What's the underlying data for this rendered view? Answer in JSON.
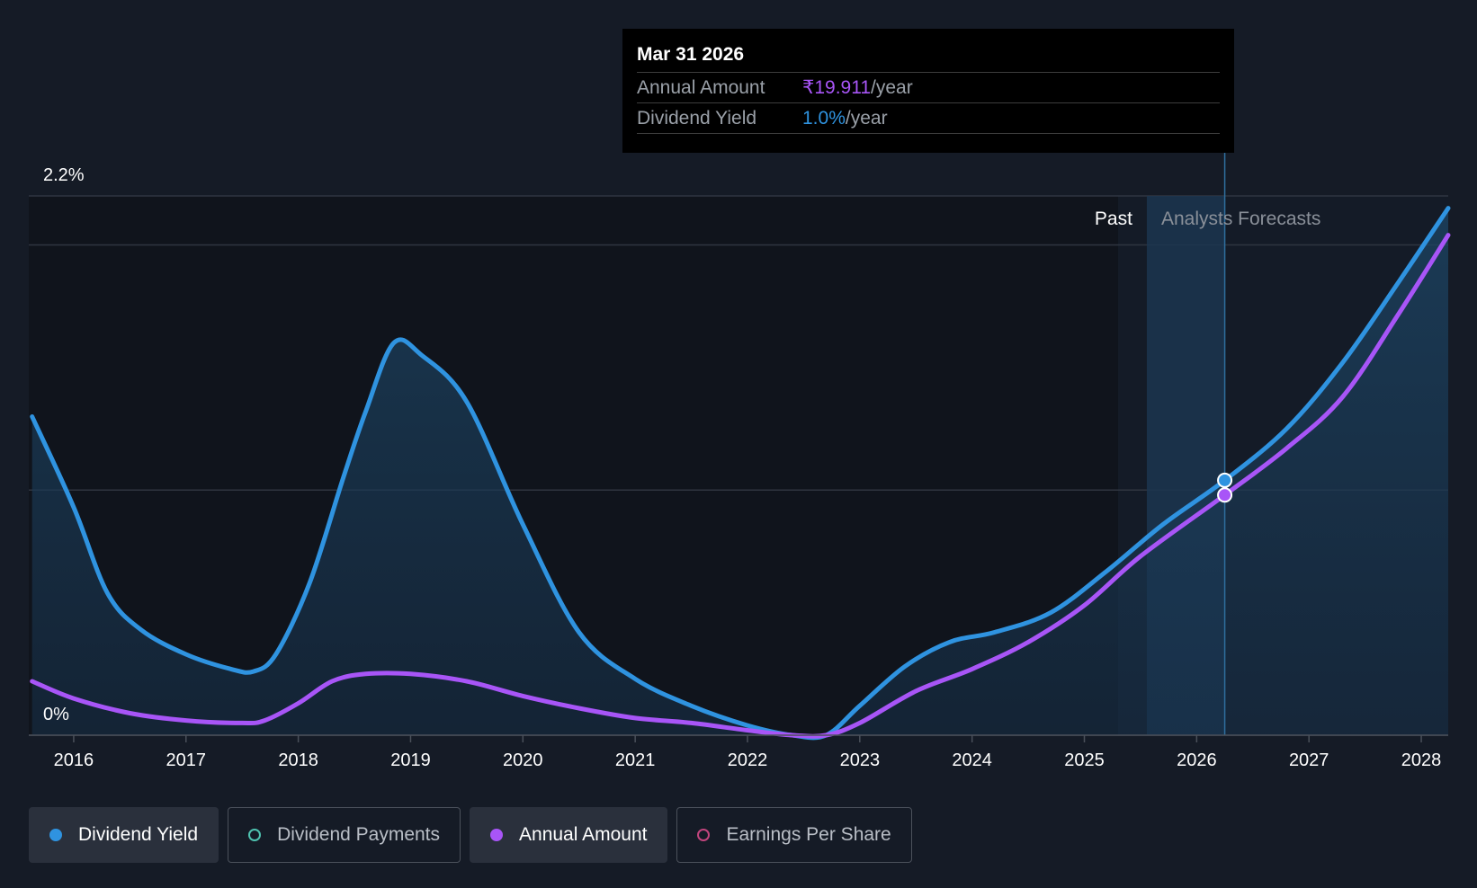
{
  "tooltip": {
    "date": "Mar 31 2026",
    "rows": [
      {
        "label": "Annual Amount",
        "value": "₹19.911",
        "unit": "/year"
      },
      {
        "label": "Dividend Yield",
        "value": "1.0%",
        "unit": "/year"
      }
    ]
  },
  "legend": [
    {
      "label": "Dividend Yield",
      "color": "#2f93e0",
      "active": true,
      "filled": true
    },
    {
      "label": "Dividend Payments",
      "color": "#4fc3b0",
      "active": false,
      "filled": false
    },
    {
      "label": "Annual Amount",
      "color": "#a855f7",
      "active": true,
      "filled": true
    },
    {
      "label": "Earnings Per Share",
      "color": "#c2457d",
      "active": false,
      "filled": false
    }
  ],
  "chart_data": {
    "type": "line",
    "y_labels": [
      "2.2%",
      "0%"
    ],
    "ylim": [
      0,
      2.2
    ],
    "x_ticks": [
      "2016",
      "2017",
      "2018",
      "2019",
      "2020",
      "2021",
      "2022",
      "2023",
      "2024",
      "2025",
      "2026",
      "2027",
      "2028"
    ],
    "xlim": [
      2015.6,
      2028.24
    ],
    "regions": {
      "past_label": "Past",
      "forecast_label": "Analysts Forecasts",
      "forecast_start": 2025.3
    },
    "highlight_x": 2026.25,
    "gridlines": [
      0,
      1.0,
      2.0,
      2.2
    ],
    "series": [
      {
        "name": "Dividend Yield",
        "color": "#2f93e0",
        "points": [
          [
            2015.63,
            1.3
          ],
          [
            2016.0,
            0.93
          ],
          [
            2016.3,
            0.58
          ],
          [
            2016.6,
            0.43
          ],
          [
            2017.0,
            0.33
          ],
          [
            2017.4,
            0.27
          ],
          [
            2017.6,
            0.26
          ],
          [
            2017.8,
            0.33
          ],
          [
            2018.1,
            0.62
          ],
          [
            2018.4,
            1.05
          ],
          [
            2018.6,
            1.32
          ],
          [
            2018.85,
            1.6
          ],
          [
            2019.1,
            1.55
          ],
          [
            2019.5,
            1.36
          ],
          [
            2020.0,
            0.86
          ],
          [
            2020.5,
            0.42
          ],
          [
            2021.0,
            0.23
          ],
          [
            2021.5,
            0.12
          ],
          [
            2022.0,
            0.04
          ],
          [
            2022.4,
            0.0
          ],
          [
            2022.7,
            0.0
          ],
          [
            2023.0,
            0.12
          ],
          [
            2023.4,
            0.28
          ],
          [
            2023.8,
            0.38
          ],
          [
            2024.2,
            0.42
          ],
          [
            2024.7,
            0.5
          ],
          [
            2025.2,
            0.67
          ],
          [
            2025.7,
            0.86
          ],
          [
            2026.25,
            1.04
          ],
          [
            2026.8,
            1.25
          ],
          [
            2027.3,
            1.52
          ],
          [
            2027.8,
            1.85
          ],
          [
            2028.24,
            2.15
          ]
        ]
      },
      {
        "name": "Annual Amount",
        "color": "#a855f7",
        "points": [
          [
            2015.63,
            0.22
          ],
          [
            2016.0,
            0.15
          ],
          [
            2016.5,
            0.09
          ],
          [
            2017.0,
            0.06
          ],
          [
            2017.5,
            0.05
          ],
          [
            2017.7,
            0.06
          ],
          [
            2018.0,
            0.13
          ],
          [
            2018.3,
            0.22
          ],
          [
            2018.6,
            0.25
          ],
          [
            2019.0,
            0.25
          ],
          [
            2019.5,
            0.22
          ],
          [
            2020.0,
            0.16
          ],
          [
            2020.5,
            0.11
          ],
          [
            2021.0,
            0.07
          ],
          [
            2021.5,
            0.05
          ],
          [
            2022.0,
            0.02
          ],
          [
            2022.4,
            0.0
          ],
          [
            2022.7,
            0.0
          ],
          [
            2023.0,
            0.05
          ],
          [
            2023.5,
            0.18
          ],
          [
            2024.0,
            0.27
          ],
          [
            2024.5,
            0.38
          ],
          [
            2025.0,
            0.53
          ],
          [
            2025.5,
            0.73
          ],
          [
            2026.25,
            0.98
          ],
          [
            2026.8,
            1.17
          ],
          [
            2027.3,
            1.38
          ],
          [
            2027.8,
            1.72
          ],
          [
            2028.24,
            2.04
          ]
        ]
      }
    ]
  }
}
